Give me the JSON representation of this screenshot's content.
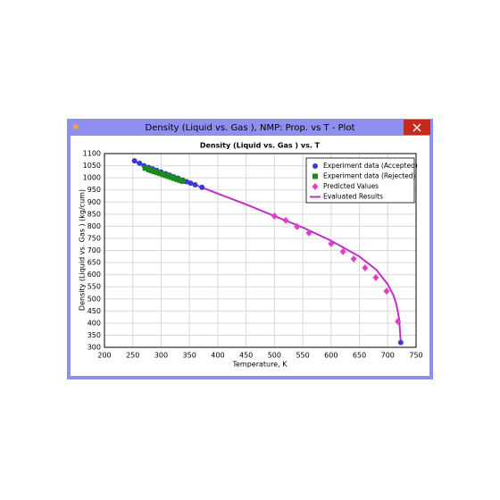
{
  "window": {
    "title": "Density (Liquid vs. Gas ), NMP: Prop. vs T - Plot"
  },
  "chart_data": {
    "type": "scatter",
    "title": "Density (Liquid vs. Gas ) vs. T",
    "x_label": "Temperature, K",
    "y_label": "Density (Liquid vs. Gas ) (kg/cum)",
    "xlim": [
      200,
      750
    ],
    "xticks": [
      200,
      250,
      300,
      350,
      400,
      450,
      500,
      550,
      600,
      650,
      700,
      750
    ],
    "ylim": [
      300,
      1100
    ],
    "yticks": [
      300,
      350,
      400,
      450,
      500,
      550,
      600,
      650,
      700,
      750,
      800,
      850,
      900,
      950,
      1000,
      1050,
      1100
    ],
    "grid": true,
    "legend": "upper right",
    "series": [
      {
        "name": "Experiment data (Accepted)",
        "color": "#3a3ad4",
        "marker": "circle",
        "x": [
          253,
          262,
          270,
          278,
          285,
          292,
          300,
          308,
          315,
          322,
          330,
          338,
          345,
          352,
          360,
          372,
          723
        ],
        "values": [
          1070,
          1060,
          1050,
          1043,
          1037,
          1031,
          1024,
          1017,
          1011,
          1004,
          998,
          991,
          984,
          978,
          971,
          961,
          320
        ]
      },
      {
        "name": "Experiment data (Rejected)",
        "color": "#1a8a1a",
        "marker": "square",
        "x": [
          272,
          278,
          283,
          288,
          293,
          298,
          303,
          308,
          313,
          318,
          323,
          328,
          333,
          338
        ],
        "values": [
          1040,
          1034,
          1030,
          1026,
          1022,
          1018,
          1014,
          1010,
          1006,
          1002,
          998,
          994,
          990,
          986
        ]
      },
      {
        "name": "Predicted Values",
        "color": "#e040c8",
        "marker": "diamond",
        "x": [
          500,
          520,
          540,
          561,
          600,
          621,
          640,
          660,
          679,
          698,
          718
        ],
        "values": [
          842,
          824,
          798,
          772,
          728,
          695,
          665,
          628,
          588,
          532,
          407
        ]
      },
      {
        "name": "Evaluated Results",
        "color": "#c030c8",
        "marker": "line",
        "x": [
          250,
          300,
          350,
          400,
          450,
          500,
          550,
          600,
          650,
          680,
          700,
          710,
          715,
          720,
          723
        ],
        "values": [
          1070,
          1024,
          980,
          935,
          890,
          842,
          795,
          740,
          675,
          620,
          560,
          515,
          480,
          420,
          320
        ]
      }
    ]
  }
}
